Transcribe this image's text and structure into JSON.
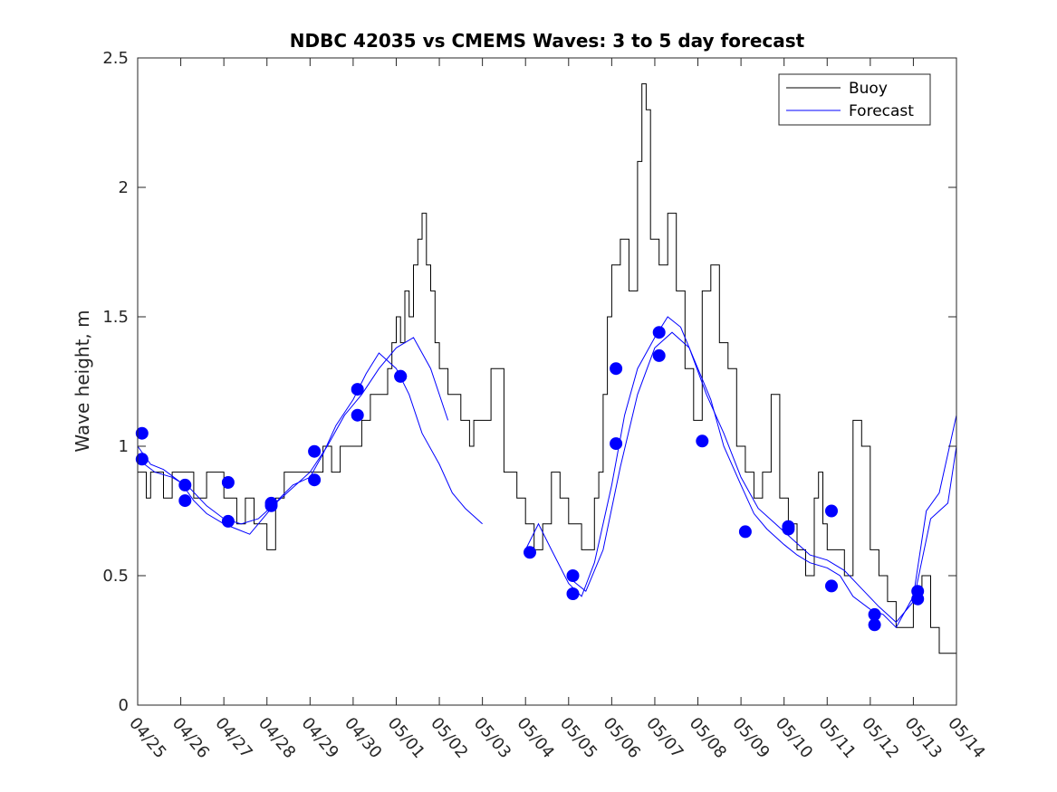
{
  "chart_data": {
    "type": "line",
    "title": "NDBC 42035 vs CMEMS Waves: 3 to 5 day forecast",
    "xlabel": "",
    "ylabel": "Wave height, m",
    "xlim": [
      0,
      19
    ],
    "ylim": [
      0,
      2.5
    ],
    "x_ticks": [
      0,
      1,
      2,
      3,
      4,
      5,
      6,
      7,
      8,
      9,
      10,
      11,
      12,
      13,
      14,
      15,
      16,
      17,
      18,
      19
    ],
    "x_tick_labels": [
      "04/25",
      "04/26",
      "04/27",
      "04/28",
      "04/29",
      "04/30",
      "05/01",
      "05/02",
      "05/03",
      "05/04",
      "05/05",
      "05/06",
      "05/07",
      "05/08",
      "05/09",
      "05/10",
      "05/11",
      "05/12",
      "05/13",
      "05/14"
    ],
    "y_ticks": [
      0,
      0.5,
      1,
      1.5,
      2,
      2.5
    ],
    "y_tick_labels": [
      "0",
      "0.5",
      "1",
      "1.5",
      "2",
      "2.5"
    ],
    "grid": false,
    "legend_position": "top-right",
    "legend": [
      "Buoy",
      "Forecast"
    ],
    "colors": {
      "buoy": "#000000",
      "forecast": "#0000ff",
      "markers": "#0000ff"
    },
    "series": [
      {
        "name": "Buoy",
        "x": [
          0.0,
          0.2,
          0.3,
          0.6,
          0.8,
          1.0,
          1.3,
          1.6,
          2.0,
          2.3,
          2.5,
          2.7,
          3.0,
          3.2,
          3.4,
          3.7,
          4.0,
          4.3,
          4.5,
          4.7,
          5.0,
          5.2,
          5.4,
          5.6,
          5.8,
          5.9,
          6.0,
          6.1,
          6.2,
          6.3,
          6.4,
          6.5,
          6.6,
          6.7,
          6.8,
          6.9,
          7.0,
          7.2,
          7.5,
          7.7,
          7.8,
          8.0,
          8.2,
          8.5,
          8.8,
          9.0,
          9.2,
          9.4,
          9.6,
          9.8,
          10.0,
          10.3,
          10.5,
          10.6,
          10.7,
          10.8,
          10.9,
          11.0,
          11.2,
          11.4,
          11.6,
          11.7,
          11.8,
          11.9,
          12.1,
          12.3,
          12.5,
          12.7,
          12.9,
          13.1,
          13.3,
          13.5,
          13.7,
          13.9,
          14.1,
          14.3,
          14.5,
          14.7,
          14.9,
          15.1,
          15.3,
          15.5,
          15.7,
          15.8,
          15.9,
          16.0,
          16.2,
          16.4,
          16.6,
          16.8,
          17.0,
          17.2,
          17.4,
          17.6,
          17.8,
          18.0,
          18.2,
          18.4,
          18.6,
          18.8,
          19.0
        ],
        "y": [
          0.9,
          0.8,
          0.9,
          0.8,
          0.9,
          0.9,
          0.8,
          0.9,
          0.8,
          0.7,
          0.8,
          0.7,
          0.6,
          0.8,
          0.9,
          0.9,
          0.9,
          1.0,
          0.9,
          1.0,
          1.0,
          1.1,
          1.2,
          1.2,
          1.3,
          1.4,
          1.5,
          1.4,
          1.6,
          1.5,
          1.7,
          1.8,
          1.9,
          1.7,
          1.6,
          1.4,
          1.3,
          1.2,
          1.1,
          1.0,
          1.1,
          1.1,
          1.3,
          0.9,
          0.8,
          0.7,
          0.6,
          0.7,
          0.9,
          0.8,
          0.7,
          0.6,
          0.6,
          0.8,
          0.9,
          1.2,
          1.5,
          1.7,
          1.8,
          1.6,
          2.1,
          2.4,
          2.3,
          1.8,
          1.7,
          1.9,
          1.6,
          1.3,
          1.1,
          1.6,
          1.7,
          1.4,
          1.3,
          1.0,
          0.9,
          0.8,
          0.9,
          1.2,
          0.8,
          0.7,
          0.6,
          0.5,
          0.8,
          0.9,
          0.7,
          0.6,
          0.6,
          0.5,
          1.1,
          1.0,
          0.6,
          0.5,
          0.4,
          0.3,
          0.3,
          0.4,
          0.5,
          0.3,
          0.2,
          0.2,
          1.0
        ]
      },
      {
        "name": "Forecast",
        "x": [
          0.0,
          0.3,
          0.6,
          1.0,
          1.3,
          1.6,
          2.0,
          2.3,
          2.6,
          3.0,
          3.3,
          3.6,
          4.0,
          4.3,
          4.6,
          5.0,
          5.3,
          5.6,
          6.0,
          6.3,
          6.6,
          7.0,
          7.3,
          7.6,
          8.0
        ],
        "y": [
          1.0,
          0.93,
          0.91,
          0.86,
          0.79,
          0.74,
          0.7,
          0.68,
          0.66,
          0.74,
          0.8,
          0.85,
          0.88,
          0.97,
          1.08,
          1.18,
          1.28,
          1.36,
          1.3,
          1.2,
          1.05,
          0.93,
          0.82,
          0.76,
          0.7
        ]
      },
      {
        "name": "Forecast",
        "x": [
          9.0,
          9.3,
          9.6,
          10.0,
          10.3,
          10.6,
          11.0,
          11.3,
          11.6,
          12.0,
          12.3,
          12.6,
          13.0,
          13.3,
          13.6,
          14.0,
          14.3,
          14.6,
          15.0,
          15.3,
          15.6,
          16.0,
          16.3,
          16.6,
          17.0,
          17.3,
          17.6,
          18.0,
          18.3,
          18.6,
          19.0
        ],
        "y": [
          0.6,
          0.7,
          0.6,
          0.47,
          0.42,
          0.55,
          0.85,
          1.12,
          1.3,
          1.42,
          1.5,
          1.46,
          1.3,
          1.18,
          1.0,
          0.85,
          0.74,
          0.68,
          0.62,
          0.58,
          0.55,
          0.53,
          0.5,
          0.42,
          0.37,
          0.35,
          0.3,
          0.42,
          0.75,
          0.82,
          1.12
        ]
      },
      {
        "name": "",
        "x": [
          0.0,
          0.4,
          0.8,
          1.2,
          1.6,
          2.0,
          2.4,
          2.8,
          3.2,
          3.6,
          4.0,
          4.4,
          4.8,
          5.2,
          5.6,
          6.0,
          6.4,
          6.8,
          7.2
        ],
        "y": [
          0.95,
          0.9,
          0.88,
          0.84,
          0.77,
          0.72,
          0.7,
          0.72,
          0.78,
          0.84,
          0.9,
          1.0,
          1.12,
          1.2,
          1.3,
          1.38,
          1.42,
          1.3,
          1.1
        ]
      },
      {
        "name": "",
        "x": [
          10.1,
          10.4,
          10.8,
          11.2,
          11.6,
          12.0,
          12.4,
          12.8,
          13.2,
          13.6,
          14.0,
          14.4,
          14.8,
          15.2,
          15.6,
          16.0,
          16.4,
          16.8,
          17.2,
          17.6,
          18.0,
          18.4,
          18.8,
          19.0
        ],
        "y": [
          0.48,
          0.44,
          0.6,
          0.92,
          1.2,
          1.38,
          1.44,
          1.38,
          1.2,
          1.05,
          0.88,
          0.76,
          0.7,
          0.64,
          0.58,
          0.56,
          0.52,
          0.45,
          0.38,
          0.32,
          0.4,
          0.72,
          0.78,
          1.0
        ]
      }
    ],
    "markers": {
      "name": "",
      "x": [
        0.1,
        0.1,
        1.1,
        1.1,
        2.1,
        2.1,
        3.1,
        3.1,
        4.1,
        4.1,
        5.1,
        5.1,
        6.1,
        6.1,
        9.1,
        10.1,
        10.1,
        11.1,
        11.1,
        12.1,
        12.1,
        13.1,
        14.1,
        15.1,
        15.1,
        16.1,
        16.1,
        17.1,
        17.1,
        18.1,
        18.1
      ],
      "y": [
        1.05,
        0.95,
        0.85,
        0.79,
        0.86,
        0.71,
        0.78,
        0.77,
        0.98,
        0.87,
        1.22,
        1.12,
        1.27,
        1.27,
        0.59,
        0.5,
        0.43,
        1.3,
        1.01,
        1.44,
        1.35,
        1.02,
        0.67,
        0.69,
        0.68,
        0.75,
        0.46,
        0.35,
        0.31,
        0.44,
        0.41
      ]
    }
  }
}
